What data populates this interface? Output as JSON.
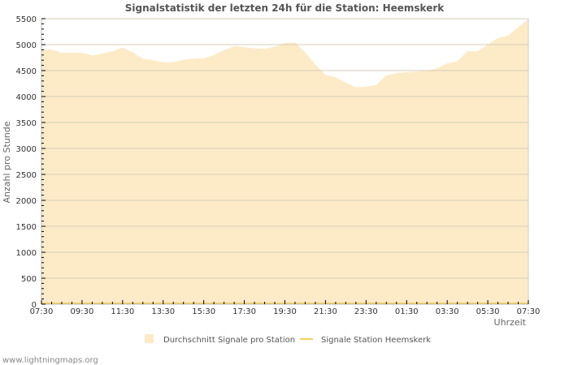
{
  "chart_data": {
    "type": "area",
    "title": "Signalstatistik der letzten 24h für die Station: Heemskerk",
    "xlabel": "Uhrzeit",
    "ylabel": "Anzahl pro Stunde",
    "ylim": [
      0,
      5500
    ],
    "yticks": [
      0,
      500,
      1000,
      1500,
      2000,
      2500,
      3000,
      3500,
      4000,
      4500,
      5000,
      5500
    ],
    "xticks": [
      "07:30",
      "09:30",
      "11:30",
      "13:30",
      "15:30",
      "17:30",
      "19:30",
      "21:30",
      "23:30",
      "01:30",
      "03:30",
      "05:30",
      "07:30"
    ],
    "grid": true,
    "legend_position": "bottom",
    "x": [
      "07:30",
      "08:00",
      "08:30",
      "09:00",
      "09:30",
      "10:00",
      "10:30",
      "11:00",
      "11:30",
      "12:00",
      "12:30",
      "13:00",
      "13:30",
      "14:00",
      "14:30",
      "15:00",
      "15:30",
      "16:00",
      "16:30",
      "17:00",
      "17:30",
      "18:00",
      "18:30",
      "19:00",
      "19:30",
      "20:00",
      "20:30",
      "21:00",
      "21:30",
      "22:00",
      "22:30",
      "23:00",
      "23:30",
      "00:00",
      "00:30",
      "01:00",
      "01:30",
      "02:00",
      "02:30",
      "03:00",
      "03:30",
      "04:00",
      "04:30",
      "05:00",
      "05:30",
      "06:00",
      "06:30",
      "07:00",
      "07:30"
    ],
    "series": [
      {
        "name": "Durchschnitt Signale pro Station",
        "style": "area",
        "color": "#fdebc8",
        "values": [
          4920,
          4900,
          4845,
          4845,
          4845,
          4790,
          4830,
          4870,
          4940,
          4850,
          4730,
          4700,
          4660,
          4660,
          4710,
          4730,
          4735,
          4800,
          4890,
          4970,
          4950,
          4930,
          4920,
          4960,
          5030,
          5045,
          4845,
          4620,
          4420,
          4370,
          4265,
          4180,
          4190,
          4220,
          4410,
          4450,
          4470,
          4480,
          4500,
          4540,
          4640,
          4680,
          4875,
          4870,
          5000,
          5130,
          5170,
          5340,
          5490
        ]
      },
      {
        "name": "Signale Station Heemskerk",
        "style": "line",
        "color": "#f5d060",
        "values": [
          0,
          0,
          0,
          0,
          0,
          0,
          0,
          0,
          0,
          0,
          0,
          0,
          0,
          0,
          0,
          0,
          0,
          0,
          0,
          0,
          0,
          0,
          0,
          0,
          0,
          0,
          0,
          0,
          0,
          0,
          0,
          0,
          0,
          0,
          0,
          0,
          0,
          0,
          0,
          0,
          0,
          0,
          0,
          0,
          0,
          0,
          0,
          0,
          0
        ]
      }
    ]
  },
  "credit": "www.lightningmaps.org"
}
